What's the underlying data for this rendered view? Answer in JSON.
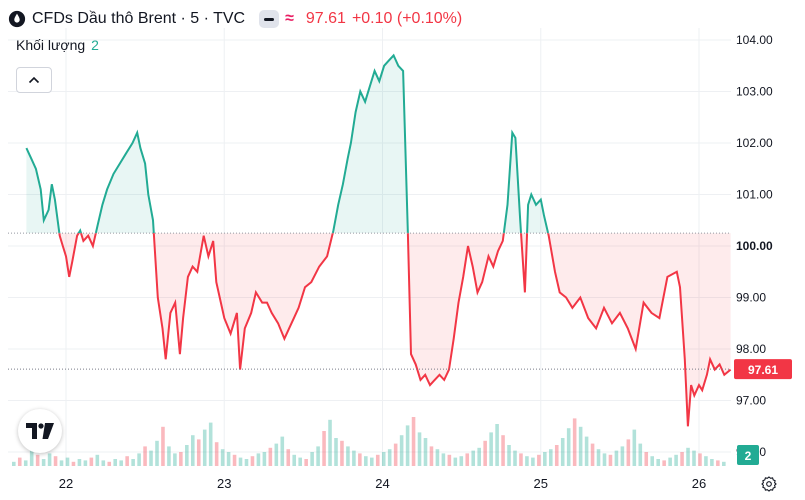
{
  "header": {
    "title": "CFDs Dầu thô Brent · 5 · TVC",
    "last_price": "97.61",
    "change": "+0.10 (+0.10%)",
    "icons": [
      "oil-drop-icon",
      "minus-chip-icon",
      "approx-icon"
    ]
  },
  "volume_label": {
    "text": "Khối lượng",
    "value": "2"
  },
  "colors": {
    "up": "#22ab94",
    "down": "#f23645",
    "accent": "#e91e63",
    "grid": "#eef0f3"
  },
  "chart_data": {
    "type": "area",
    "baseline": 100.25,
    "y_ticks": [
      "104.00",
      "103.00",
      "102.00",
      "101.00",
      "100.00",
      "99.00",
      "98.00",
      "97.00",
      "96.00"
    ],
    "x_ticks": [
      "22",
      "23",
      "24",
      "25",
      "26"
    ],
    "ylim": [
      96,
      104
    ],
    "price_label": "97.61",
    "volume_label_value": "2",
    "grid": true,
    "series": [
      {
        "values": [
          [
            21.75,
            101.9
          ],
          [
            21.78,
            101.7
          ],
          [
            21.81,
            101.5
          ],
          [
            21.84,
            101.1
          ],
          [
            21.86,
            100.5
          ],
          [
            21.89,
            100.7
          ],
          [
            21.91,
            101.2
          ],
          [
            21.93,
            100.9
          ],
          [
            21.96,
            100.2
          ],
          [
            21.98,
            100.0
          ],
          [
            22.0,
            99.8
          ],
          [
            22.02,
            99.4
          ],
          [
            22.04,
            99.7
          ],
          [
            22.07,
            100.2
          ],
          [
            22.09,
            100.3
          ],
          [
            22.11,
            100.1
          ],
          [
            22.14,
            100.2
          ],
          [
            22.17,
            100.0
          ],
          [
            22.2,
            100.4
          ],
          [
            22.23,
            100.8
          ],
          [
            22.26,
            101.1
          ],
          [
            22.3,
            101.4
          ],
          [
            22.34,
            101.6
          ],
          [
            22.38,
            101.8
          ],
          [
            22.42,
            102.0
          ],
          [
            22.45,
            102.2
          ],
          [
            22.47,
            101.9
          ],
          [
            22.5,
            101.6
          ],
          [
            22.52,
            101.0
          ],
          [
            22.55,
            100.5
          ],
          [
            22.58,
            99.0
          ],
          [
            22.61,
            98.4
          ],
          [
            22.63,
            97.8
          ],
          [
            22.66,
            98.7
          ],
          [
            22.69,
            98.9
          ],
          [
            22.72,
            97.9
          ],
          [
            22.74,
            98.6
          ],
          [
            22.77,
            99.4
          ],
          [
            22.8,
            99.6
          ],
          [
            22.83,
            99.5
          ],
          [
            22.87,
            100.2
          ],
          [
            22.9,
            99.8
          ],
          [
            22.93,
            100.1
          ],
          [
            22.95,
            99.3
          ],
          [
            23.0,
            98.6
          ],
          [
            23.04,
            98.3
          ],
          [
            23.08,
            98.7
          ],
          [
            23.1,
            97.6
          ],
          [
            23.13,
            98.4
          ],
          [
            23.17,
            98.7
          ],
          [
            23.2,
            99.1
          ],
          [
            23.24,
            98.9
          ],
          [
            23.27,
            98.9
          ],
          [
            23.3,
            98.7
          ],
          [
            23.34,
            98.5
          ],
          [
            23.38,
            98.2
          ],
          [
            23.41,
            98.4
          ],
          [
            23.44,
            98.6
          ],
          [
            23.47,
            98.8
          ],
          [
            23.51,
            99.2
          ],
          [
            23.55,
            99.3
          ],
          [
            23.6,
            99.6
          ],
          [
            23.65,
            99.8
          ],
          [
            23.69,
            100.3
          ],
          [
            23.72,
            100.8
          ],
          [
            23.75,
            101.2
          ],
          [
            23.78,
            101.7
          ],
          [
            23.8,
            102.0
          ],
          [
            23.83,
            102.6
          ],
          [
            23.86,
            103.0
          ],
          [
            23.89,
            102.8
          ],
          [
            23.92,
            103.1
          ],
          [
            23.95,
            103.4
          ],
          [
            23.98,
            103.2
          ],
          [
            24.01,
            103.5
          ],
          [
            24.04,
            103.6
          ],
          [
            24.07,
            103.7
          ],
          [
            24.1,
            103.5
          ],
          [
            24.13,
            103.4
          ],
          [
            24.16,
            100.3
          ],
          [
            24.18,
            97.9
          ],
          [
            24.21,
            97.7
          ],
          [
            24.24,
            97.4
          ],
          [
            24.27,
            97.5
          ],
          [
            24.3,
            97.3
          ],
          [
            24.33,
            97.4
          ],
          [
            24.36,
            97.5
          ],
          [
            24.39,
            97.4
          ],
          [
            24.42,
            97.6
          ],
          [
            24.45,
            98.2
          ],
          [
            24.48,
            98.9
          ],
          [
            24.51,
            99.4
          ],
          [
            24.54,
            100.0
          ],
          [
            24.57,
            99.6
          ],
          [
            24.6,
            99.1
          ],
          [
            24.63,
            99.3
          ],
          [
            24.67,
            99.8
          ],
          [
            24.7,
            99.6
          ],
          [
            24.73,
            99.9
          ],
          [
            24.76,
            100.1
          ],
          [
            24.79,
            100.8
          ],
          [
            24.82,
            102.2
          ],
          [
            24.84,
            102.1
          ],
          [
            24.87,
            100.5
          ],
          [
            24.9,
            99.1
          ],
          [
            24.92,
            100.8
          ],
          [
            24.94,
            101.0
          ],
          [
            24.97,
            100.8
          ],
          [
            25.0,
            100.9
          ],
          [
            25.02,
            100.6
          ],
          [
            25.05,
            100.2
          ],
          [
            25.09,
            99.5
          ],
          [
            25.12,
            99.1
          ],
          [
            25.16,
            99.0
          ],
          [
            25.2,
            98.8
          ],
          [
            25.25,
            99.0
          ],
          [
            25.3,
            98.6
          ],
          [
            25.35,
            98.4
          ],
          [
            25.4,
            98.8
          ],
          [
            25.45,
            98.5
          ],
          [
            25.5,
            98.7
          ],
          [
            25.55,
            98.4
          ],
          [
            25.6,
            98.0
          ],
          [
            25.65,
            98.9
          ],
          [
            25.7,
            98.7
          ],
          [
            25.75,
            98.6
          ],
          [
            25.8,
            99.4
          ],
          [
            25.86,
            99.5
          ],
          [
            25.88,
            99.2
          ],
          [
            25.91,
            97.8
          ],
          [
            25.93,
            96.5
          ],
          [
            25.95,
            97.3
          ],
          [
            25.97,
            97.1
          ],
          [
            26.0,
            97.3
          ],
          [
            26.02,
            97.2
          ],
          [
            26.05,
            97.5
          ],
          [
            26.07,
            97.8
          ],
          [
            26.1,
            97.6
          ],
          [
            26.13,
            97.7
          ],
          [
            26.16,
            97.5
          ],
          [
            26.2,
            97.6
          ]
        ]
      }
    ],
    "volume": [
      0.3,
      0.6,
      0.4,
      1.2,
      0.8,
      0.5,
      0.9,
      0.7,
      0.4,
      0.6,
      0.3,
      0.5,
      0.4,
      0.6,
      0.8,
      0.4,
      0.3,
      0.5,
      0.4,
      0.7,
      0.5,
      0.9,
      1.4,
      1.1,
      1.8,
      2.8,
      1.4,
      0.9,
      1.0,
      1.5,
      2.2,
      1.9,
      2.6,
      3.1,
      1.7,
      1.2,
      1.0,
      0.8,
      0.6,
      0.5,
      0.7,
      0.9,
      1.0,
      1.3,
      1.6,
      2.1,
      1.2,
      0.8,
      0.6,
      0.5,
      1.0,
      1.4,
      2.5,
      3.3,
      2.0,
      1.8,
      1.4,
      1.1,
      0.9,
      0.7,
      0.6,
      0.8,
      1.0,
      1.2,
      1.6,
      2.2,
      2.9,
      3.5,
      2.4,
      2.0,
      1.4,
      1.2,
      0.9,
      0.8,
      0.6,
      0.7,
      0.9,
      1.1,
      1.3,
      1.8,
      2.4,
      3.0,
      2.2,
      1.5,
      1.1,
      0.9,
      0.7,
      0.6,
      0.8,
      1.0,
      1.2,
      1.5,
      2.0,
      2.7,
      3.4,
      2.8,
      2.1,
      1.6,
      1.2,
      0.9,
      0.8,
      1.1,
      1.4,
      1.9,
      2.6,
      1.6,
      1.0,
      0.7,
      0.5,
      0.4,
      0.6,
      0.8,
      1.0,
      1.3,
      1.1,
      0.9,
      0.7,
      0.5,
      0.4,
      0.3
    ]
  }
}
